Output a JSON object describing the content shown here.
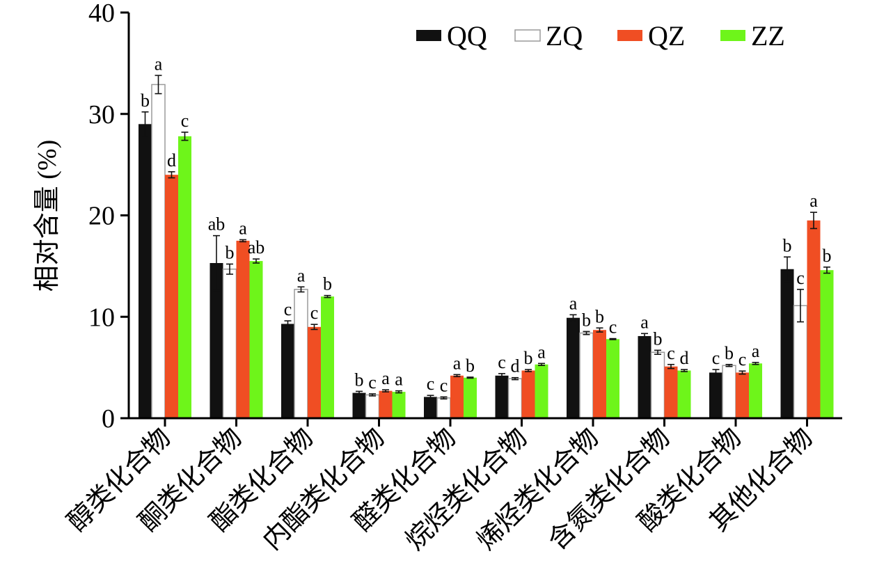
{
  "chart_data": {
    "type": "bar",
    "ylabel": "相对含量 (%)",
    "ylim": [
      0,
      40
    ],
    "yticks": [
      0,
      10,
      20,
      30,
      40
    ],
    "legend_position": "top-right",
    "categories": [
      "醇类化合物",
      "酮类化合物",
      "酯类化合物",
      "内酯类化合物",
      "醛类化合物",
      "烷烃类化合物",
      "烯烃类化合物",
      "含氮类化合物",
      "酸类化合物",
      "其他化合物"
    ],
    "series": [
      {
        "name": "QQ",
        "color": "#111111",
        "values": [
          29.0,
          15.3,
          9.3,
          2.5,
          2.1,
          4.2,
          9.9,
          8.1,
          4.5,
          14.7
        ],
        "errors": [
          1.2,
          2.7,
          0.3,
          0.15,
          0.15,
          0.2,
          0.3,
          0.25,
          0.3,
          1.2
        ],
        "labels": [
          "b",
          "ab",
          "c",
          "b",
          "c",
          "c",
          "a",
          "a",
          "c",
          "b"
        ]
      },
      {
        "name": "ZQ",
        "color": "#ffffff",
        "values": [
          32.9,
          14.7,
          12.7,
          2.3,
          2.0,
          3.9,
          8.4,
          6.5,
          5.2,
          11.1
        ],
        "errors": [
          0.9,
          0.5,
          0.25,
          0.1,
          0.1,
          0.1,
          0.15,
          0.2,
          0.1,
          1.6
        ],
        "labels": [
          "a",
          "b",
          "a",
          "c",
          "c",
          "d",
          "b",
          "b",
          "b",
          "c"
        ]
      },
      {
        "name": "QZ",
        "color": "#f04e23",
        "values": [
          24.0,
          17.5,
          9.0,
          2.7,
          4.2,
          4.7,
          8.7,
          5.1,
          4.5,
          19.5
        ],
        "errors": [
          0.3,
          0.1,
          0.25,
          0.1,
          0.1,
          0.1,
          0.2,
          0.2,
          0.15,
          0.8
        ],
        "labels": [
          "d",
          "a",
          "c",
          "a",
          "a",
          "b",
          "b",
          "c",
          "c",
          "a"
        ]
      },
      {
        "name": "ZZ",
        "color": "#6ef51a",
        "values": [
          27.8,
          15.5,
          12.0,
          2.6,
          4.0,
          5.3,
          7.8,
          4.7,
          5.4,
          14.6
        ],
        "errors": [
          0.4,
          0.2,
          0.1,
          0.1,
          0.05,
          0.1,
          0.05,
          0.1,
          0.1,
          0.3
        ],
        "labels": [
          "c",
          "ab",
          "b",
          "a",
          "b",
          "a",
          "c",
          "d",
          "a",
          "b"
        ]
      }
    ]
  }
}
